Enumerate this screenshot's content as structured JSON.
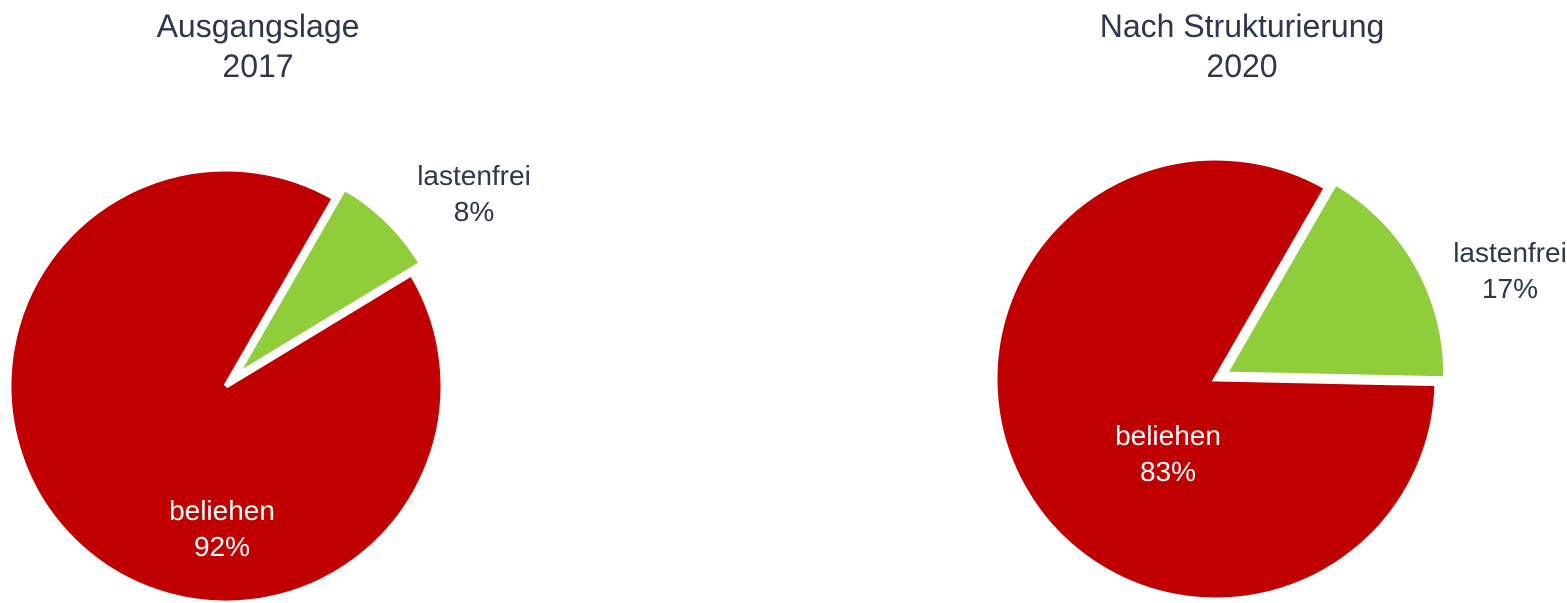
{
  "chart_data": [
    {
      "type": "pie",
      "title": "Ausgangslage",
      "subtitle": "2017",
      "slices": [
        {
          "label": "beliehen",
          "value": 92,
          "value_label": "92%",
          "color": "#c00000",
          "label_color": "#ffffff"
        },
        {
          "label": "lastenfrei",
          "value": 8,
          "value_label": "8%",
          "color": "#8fce3a",
          "label_color": "#2e3650",
          "exploded": true
        }
      ]
    },
    {
      "type": "pie",
      "title": "Nach Strukturierung",
      "subtitle": "2020",
      "slices": [
        {
          "label": "beliehen",
          "value": 83,
          "value_label": "83%",
          "color": "#c00000",
          "label_color": "#ffffff"
        },
        {
          "label": "lastenfrei",
          "value": 17,
          "value_label": "17%",
          "color": "#8fce3a",
          "label_color": "#2e3650",
          "exploded": true
        }
      ]
    }
  ]
}
